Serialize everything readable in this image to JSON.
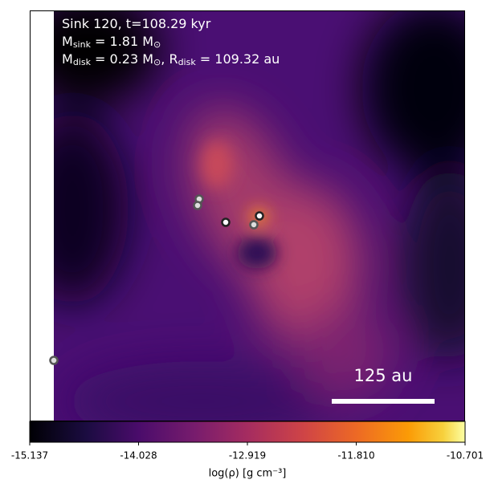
{
  "chart_data": {
    "type": "heatmap",
    "colormap": "inferno",
    "annotations": [
      [
        "Sink 120, t=108.29 kyr"
      ],
      [
        "M",
        "sink",
        " = 1.81 M",
        "⊙"
      ],
      [
        "M",
        "disk",
        " = 0.23 M",
        "⊙",
        ", R",
        "disk",
        " = 109.32 au"
      ]
    ],
    "scale_bar_label": "125 au",
    "colorbar_label": "log(ρ) [g cm⁻³]",
    "clim": [
      -15.137,
      -10.701
    ],
    "cticks": [
      -15.137,
      -14.028,
      -12.919,
      {
        "value": -11.81,
        "label": "-11.810"
      },
      -10.701
    ]
  }
}
